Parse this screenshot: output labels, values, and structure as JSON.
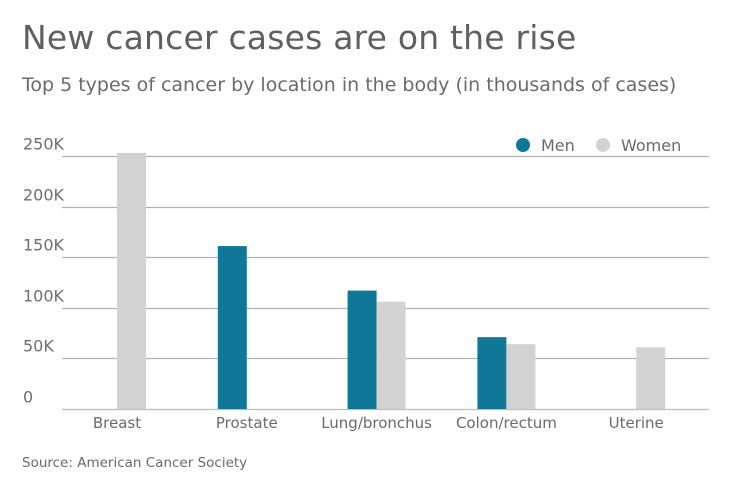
{
  "header": {
    "title": "New cancer cases are on the rise",
    "subtitle": "Top 5 types of cancer by location in the body (in thousands of cases)"
  },
  "footer": {
    "source": "Source: American Cancer Society"
  },
  "colors": {
    "men": "#0e7896",
    "women": "#d3d2d3",
    "grid": "#b3b3b3"
  },
  "chart_data": {
    "type": "bar",
    "title": "New cancer cases are on the rise",
    "subtitle": "Top 5 types of cancer by location in the body (in thousands of cases)",
    "xlabel": "",
    "ylabel": "",
    "categories": [
      "Breast",
      "Prostate",
      "Lung/bronchus",
      "Colon/rectum",
      "Uterine"
    ],
    "series": [
      {
        "name": "Men",
        "values": [
          null,
          161,
          117,
          71,
          null
        ]
      },
      {
        "name": "Women",
        "values": [
          253,
          null,
          106,
          64,
          61
        ]
      }
    ],
    "ylim": [
      0,
      250
    ],
    "yticks": [
      0,
      50,
      100,
      150,
      200,
      250
    ],
    "ytick_labels": [
      "0",
      "50K",
      "100K",
      "150K",
      "200K",
      "250K"
    ],
    "grid": true,
    "legend": {
      "position": "top-right",
      "entries": [
        "Men",
        "Women"
      ]
    }
  }
}
